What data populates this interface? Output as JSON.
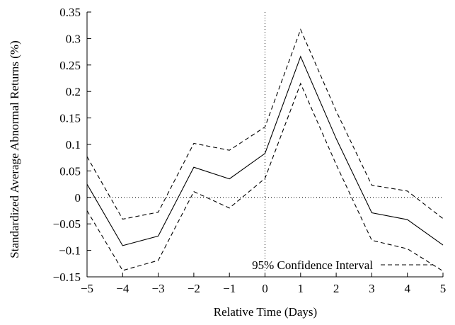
{
  "chart_data": {
    "type": "line",
    "title": "",
    "xlabel": "Relative Time (Days)",
    "ylabel": "Standardized Average Abnormal Returns (%)",
    "xlim": [
      -5,
      5
    ],
    "ylim": [
      -0.15,
      0.35
    ],
    "x_ticks": [
      -5,
      -4,
      -3,
      -2,
      -1,
      0,
      1,
      2,
      3,
      4,
      5
    ],
    "x_tick_labels": [
      "−5",
      "−4",
      "−3",
      "−2",
      "−1",
      "0",
      "1",
      "2",
      "3",
      "4",
      "5"
    ],
    "y_ticks": [
      -0.15,
      -0.1,
      -0.05,
      0,
      0.05,
      0.1,
      0.15,
      0.2,
      0.25,
      0.3,
      0.35
    ],
    "y_tick_labels": [
      "−0.15",
      "−0.1",
      "−0.05",
      "0",
      "0.05",
      "0.1",
      "0.15",
      "0.2",
      "0.25",
      "0.3",
      "0.35"
    ],
    "grid": false,
    "reference_lines": [
      {
        "orientation": "horizontal",
        "value": 0,
        "style": "dotted"
      },
      {
        "orientation": "vertical",
        "value": 0,
        "style": "dotted"
      }
    ],
    "legend": {
      "position": "bottom-right",
      "entries": [
        "95% Confidence Interval"
      ]
    },
    "x": [
      -5,
      -4,
      -3,
      -2,
      -1,
      0,
      1,
      2,
      3,
      4,
      5
    ],
    "series": [
      {
        "role": "estimate",
        "style": "solid",
        "color": "#000000",
        "values": [
          0.025,
          -0.091,
          -0.073,
          0.057,
          0.035,
          0.083,
          0.266,
          0.111,
          -0.029,
          -0.042,
          -0.09
        ]
      },
      {
        "role": "upper",
        "legend_index": 0,
        "style": "dashed",
        "color": "#000000",
        "values": [
          0.077,
          -0.041,
          -0.028,
          0.102,
          0.089,
          0.133,
          0.317,
          0.163,
          0.023,
          0.012,
          -0.04
        ]
      },
      {
        "role": "lower",
        "legend_index": 0,
        "style": "dashed",
        "color": "#000000",
        "values": [
          -0.025,
          -0.138,
          -0.119,
          0.011,
          -0.02,
          0.036,
          0.215,
          0.062,
          -0.081,
          -0.097,
          -0.139
        ]
      }
    ]
  }
}
